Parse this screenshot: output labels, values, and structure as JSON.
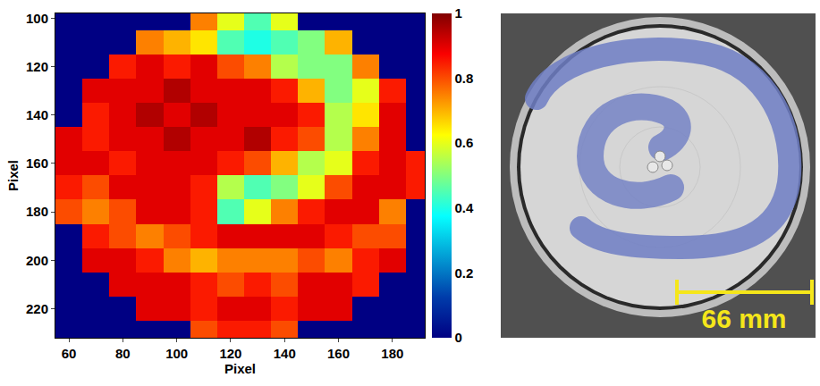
{
  "chart_data": {
    "type": "heatmap",
    "x_label": "Pixel",
    "y_label": "Pixel",
    "x": [
      60,
      70,
      80,
      90,
      100,
      110,
      120,
      130,
      140,
      150,
      160,
      170,
      180,
      190
    ],
    "y": [
      100,
      110,
      120,
      130,
      140,
      150,
      160,
      170,
      180,
      190,
      200,
      210,
      220,
      230
    ],
    "z": [
      [
        0,
        0,
        0,
        0,
        0,
        0.75,
        0.6,
        0.45,
        0.6,
        0,
        0,
        0,
        0,
        0
      ],
      [
        0,
        0,
        0,
        0.75,
        0.7,
        0.65,
        0.45,
        0.4,
        0.45,
        0.5,
        0.7,
        0,
        0,
        0
      ],
      [
        0,
        0,
        0.85,
        0.9,
        0.85,
        0.9,
        0.8,
        0.75,
        0.55,
        0.5,
        0.5,
        0.75,
        0,
        0
      ],
      [
        0,
        0.9,
        0.9,
        0.9,
        0.95,
        0.9,
        0.9,
        0.9,
        0.85,
        0.7,
        0.5,
        0.6,
        0.85,
        0
      ],
      [
        0,
        0.85,
        0.9,
        0.95,
        0.9,
        0.95,
        0.9,
        0.9,
        0.9,
        0.85,
        0.55,
        0.65,
        0.9,
        0
      ],
      [
        0.9,
        0.85,
        0.9,
        0.9,
        0.95,
        0.9,
        0.9,
        0.95,
        0.85,
        0.8,
        0.55,
        0.75,
        0.9,
        0
      ],
      [
        0.9,
        0.9,
        0.85,
        0.9,
        0.9,
        0.9,
        0.85,
        0.8,
        0.7,
        0.55,
        0.6,
        0.85,
        0.9,
        0.85
      ],
      [
        0.85,
        0.8,
        0.9,
        0.9,
        0.9,
        0.85,
        0.55,
        0.45,
        0.5,
        0.6,
        0.8,
        0.9,
        0.9,
        0.85
      ],
      [
        0.8,
        0.75,
        0.8,
        0.9,
        0.9,
        0.85,
        0.45,
        0.6,
        0.75,
        0.85,
        0.9,
        0.9,
        0.75,
        0
      ],
      [
        0,
        0.85,
        0.8,
        0.75,
        0.8,
        0.85,
        0.9,
        0.9,
        0.9,
        0.9,
        0.85,
        0.8,
        0.8,
        0
      ],
      [
        0,
        0.9,
        0.9,
        0.85,
        0.75,
        0.7,
        0.75,
        0.75,
        0.75,
        0.8,
        0.75,
        0.85,
        0.9,
        0
      ],
      [
        0,
        0,
        0.9,
        0.9,
        0.9,
        0.85,
        0.8,
        0.85,
        0.8,
        0.9,
        0.9,
        0.85,
        0,
        0
      ],
      [
        0,
        0,
        0,
        0.9,
        0.9,
        0.85,
        0.9,
        0.9,
        0.85,
        0.9,
        0.9,
        0,
        0,
        0
      ],
      [
        0,
        0,
        0,
        0,
        0,
        0.8,
        0.85,
        0.85,
        0.8,
        0,
        0,
        0,
        0,
        0
      ]
    ],
    "xlim": [
      55,
      192
    ],
    "xticks": [
      60,
      80,
      100,
      120,
      140,
      160,
      180
    ],
    "ylim": [
      232,
      98
    ],
    "yticks": [
      100,
      120,
      140,
      160,
      180,
      200,
      220
    ],
    "colorbar_range": [
      0,
      1
    ],
    "colorbar_ticks": [
      0,
      0.2,
      0.4,
      0.6,
      0.8,
      1
    ]
  },
  "photo": {
    "scale_bar_label": "66 mm"
  }
}
